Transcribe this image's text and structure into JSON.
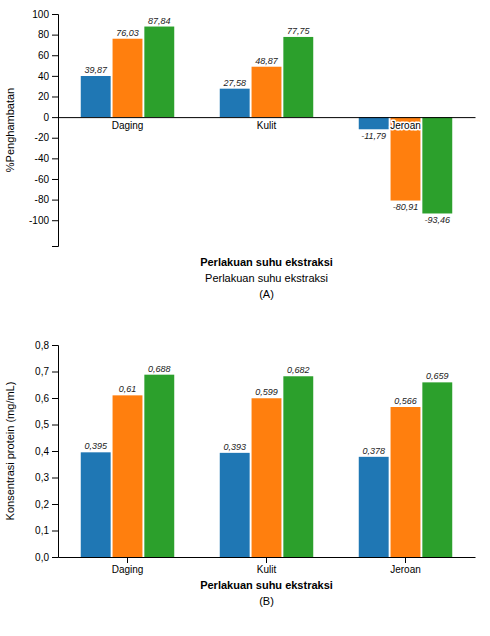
{
  "chart_data": [
    {
      "type": "bar",
      "categories": [
        "Daging",
        "Kulit",
        "Jeroan"
      ],
      "series": [
        {
          "values": [
            39.87,
            27.58,
            -11.79
          ],
          "value_labels": [
            "39,87",
            "27,58",
            "-11,79"
          ]
        },
        {
          "values": [
            76.03,
            48.87,
            -80.91
          ],
          "value_labels": [
            "76,03",
            "48,87",
            "-80,91"
          ]
        },
        {
          "values": [
            87.84,
            77.75,
            -93.46
          ],
          "value_labels": [
            "87,84",
            "77,75",
            "-93,46"
          ]
        }
      ],
      "y_label": "%Penghambatan",
      "x_label": "Perlakuan suhu ekstraksi",
      "annotations": [
        "Perlakuan suhu ekstraksi",
        "(A)"
      ],
      "ylim": [
        -125,
        100
      ],
      "yticks": [
        -100,
        -80,
        -60,
        -40,
        -20,
        0,
        20,
        40,
        60,
        80,
        100
      ],
      "data_labels": true,
      "grid": false
    },
    {
      "type": "bar",
      "categories": [
        "Daging",
        "Kulit",
        "Jeroan"
      ],
      "series": [
        {
          "values": [
            0.395,
            0.393,
            0.378
          ],
          "value_labels": [
            "0,395",
            "0,393",
            "0,378"
          ]
        },
        {
          "values": [
            0.61,
            0.599,
            0.566
          ],
          "value_labels": [
            "0,61",
            "0,599",
            "0,566"
          ]
        },
        {
          "values": [
            0.688,
            0.682,
            0.659
          ],
          "value_labels": [
            "0,688",
            "0,682",
            "0,659"
          ]
        }
      ],
      "y_label": "Konsentrasi protein (mg/mL)",
      "x_label": "Perlakuan suhu ekstraksi",
      "annotations": [
        "(B)"
      ],
      "ylim": [
        0.0,
        0.8
      ],
      "yticks": [
        {
          "value": 0.0,
          "label": "0,0"
        },
        {
          "value": 0.1,
          "label": "0,1"
        },
        {
          "value": 0.2,
          "label": "0,2"
        },
        {
          "value": 0.3,
          "label": "0,3"
        },
        {
          "value": 0.4,
          "label": "0,4"
        },
        {
          "value": 0.5,
          "label": "0,5"
        },
        {
          "value": 0.6,
          "label": "0,6"
        },
        {
          "value": 0.7,
          "label": "0,7"
        },
        {
          "value": 0.8,
          "label": "0,8"
        }
      ],
      "data_labels": true,
      "grid": false
    }
  ]
}
